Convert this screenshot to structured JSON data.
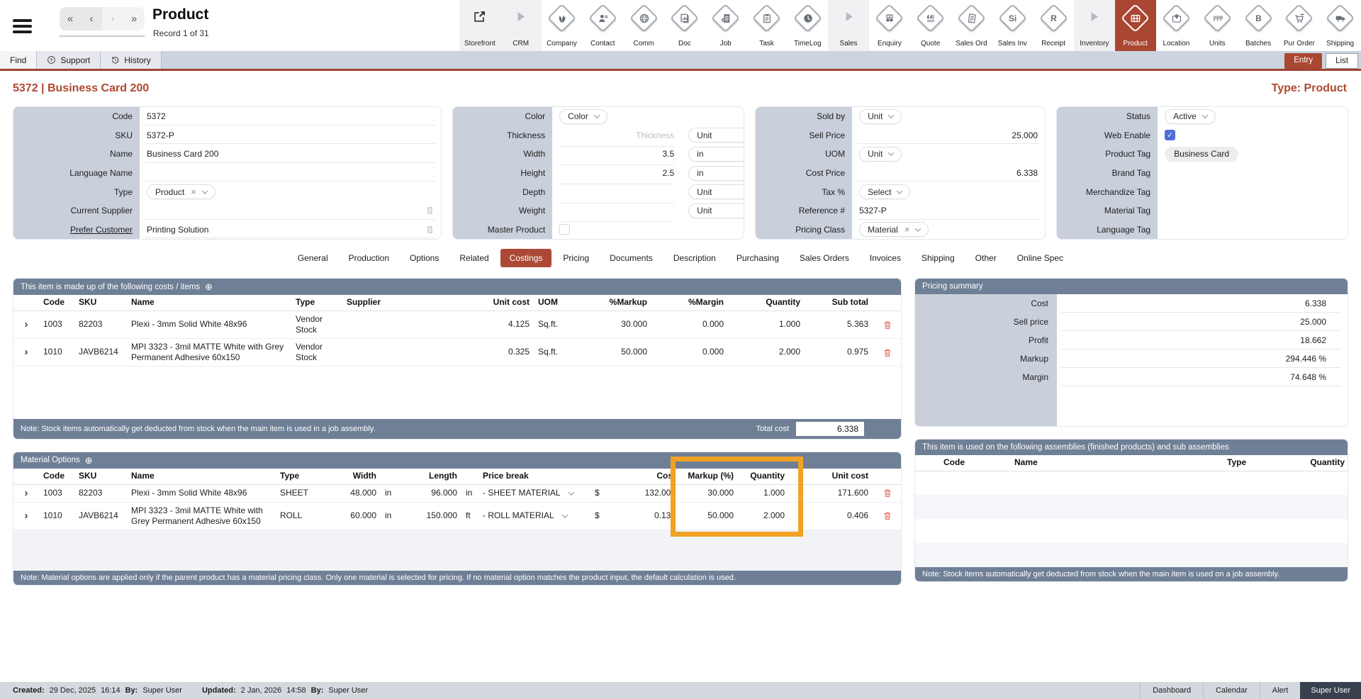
{
  "app": {
    "title": "Product",
    "record": "Record 1 of 31"
  },
  "topnav": {
    "buttons": [
      "«",
      "‹",
      "›",
      "»"
    ]
  },
  "toolbar": {
    "items": [
      {
        "label": "Storefront",
        "icon": "ext-link",
        "kind": "plain-dark"
      },
      {
        "label": "CRM",
        "icon": "play",
        "kind": "plain"
      },
      {
        "label": "Company",
        "icon": "leaves",
        "kind": "diamond"
      },
      {
        "label": "Contact",
        "icon": "person",
        "kind": "diamond"
      },
      {
        "label": "Comm",
        "icon": "globe",
        "kind": "diamond"
      },
      {
        "label": "Doc",
        "icon": "doc-chart",
        "kind": "diamond"
      },
      {
        "label": "Job",
        "icon": "doc-check",
        "kind": "diamond"
      },
      {
        "label": "Task",
        "icon": "clipboard",
        "kind": "diamond"
      },
      {
        "label": "TimeLog",
        "icon": "clock",
        "kind": "diamond"
      },
      {
        "label": "Sales",
        "icon": "play",
        "kind": "plain"
      },
      {
        "label": "Enquiry",
        "icon": "binoculars",
        "kind": "diamond"
      },
      {
        "label": "Quote",
        "icon": "quote",
        "kind": "diamond"
      },
      {
        "label": "Sales Ord",
        "icon": "doc-lines",
        "kind": "diamond"
      },
      {
        "label": "Sales Inv",
        "icon": "text:Si",
        "kind": "diamond"
      },
      {
        "label": "Receipt",
        "icon": "text:R",
        "kind": "diamond"
      },
      {
        "label": "Inventory",
        "icon": "play",
        "kind": "plain"
      },
      {
        "label": "Product",
        "icon": "shelf",
        "kind": "diamond",
        "active": true
      },
      {
        "label": "Location",
        "icon": "map-pin",
        "kind": "diamond"
      },
      {
        "label": "Units",
        "icon": "barcode",
        "kind": "diamond"
      },
      {
        "label": "Batches",
        "icon": "text:B",
        "kind": "diamond"
      },
      {
        "label": "Pur Order",
        "icon": "cart",
        "kind": "diamond"
      },
      {
        "label": "Shipping",
        "icon": "truck",
        "kind": "diamond"
      }
    ]
  },
  "menubar": {
    "tabs": [
      {
        "label": "Find",
        "icon": null
      },
      {
        "label": "Support",
        "icon": "question"
      },
      {
        "label": "History",
        "icon": "history"
      }
    ],
    "view_buttons": [
      {
        "label": "Entry",
        "active": true
      },
      {
        "label": "List",
        "active": false
      }
    ]
  },
  "heading": {
    "title": "5372 | Business Card 200",
    "type": "Type: Product"
  },
  "form": {
    "panels": [
      {
        "fields": [
          {
            "label": "Code",
            "type": "input",
            "value": "5372"
          },
          {
            "label": "SKU",
            "type": "input",
            "value": "5372-P"
          },
          {
            "label": "Name",
            "type": "input",
            "value": "Business Card 200"
          },
          {
            "label": "Language Name",
            "type": "input",
            "value": ""
          },
          {
            "label": "Type",
            "type": "select-x",
            "value": "Product"
          },
          {
            "label": "Current Supplier",
            "type": "lookup",
            "value": ""
          },
          {
            "label": "Prefer Customer",
            "type": "lookup",
            "value": "Printing Solution",
            "link": true
          }
        ]
      },
      {
        "fields": [
          {
            "label": "Color",
            "type": "select",
            "value": "Color"
          },
          {
            "label": "Thickness",
            "type": "input-unit",
            "value": "",
            "placeholder": "Thickness",
            "unit": "Unit"
          },
          {
            "label": "Width",
            "type": "input-unit",
            "value": "3.5",
            "unit": "in"
          },
          {
            "label": "Height",
            "type": "input-unit",
            "value": "2.5",
            "unit": "in"
          },
          {
            "label": "Depth",
            "type": "input-unit",
            "value": "",
            "unit": "Unit"
          },
          {
            "label": "Weight",
            "type": "input-unit",
            "value": "",
            "unit": "Unit"
          },
          {
            "label": "Master Product",
            "type": "checkbox",
            "checked": false
          }
        ]
      },
      {
        "fields": [
          {
            "label": "Sold by",
            "type": "select",
            "value": "Unit"
          },
          {
            "label": "Sell Price",
            "type": "input-num",
            "value": "25.000"
          },
          {
            "label": "UOM",
            "type": "select",
            "value": "Unit"
          },
          {
            "label": "Cost Price",
            "type": "input-num",
            "value": "6.338"
          },
          {
            "label": "Tax %",
            "type": "select",
            "value": "Select"
          },
          {
            "label": "Reference #",
            "type": "input",
            "value": "5327-P"
          },
          {
            "label": "Pricing Class",
            "type": "select-x",
            "value": "Material"
          }
        ]
      },
      {
        "fields": [
          {
            "label": "Status",
            "type": "select",
            "value": "Active"
          },
          {
            "label": "Web Enable",
            "type": "checkbox",
            "checked": true
          },
          {
            "label": "Product Tag",
            "type": "chip",
            "value": "Business Card"
          },
          {
            "label": "Brand Tag",
            "type": "empty"
          },
          {
            "label": "Merchandize Tag",
            "type": "empty"
          },
          {
            "label": "Material Tag",
            "type": "empty"
          },
          {
            "label": "Language Tag",
            "type": "empty"
          }
        ]
      }
    ]
  },
  "tabs": {
    "items": [
      "General",
      "Production",
      "Options",
      "Related",
      "Costings",
      "Pricing",
      "Documents",
      "Description",
      "Purchasing",
      "Sales Orders",
      "Invoices",
      "Shipping",
      "Other",
      "Online Spec"
    ],
    "active": "Costings"
  },
  "costs_table": {
    "title": "This item is made up of the following costs / items",
    "add_icon": "⊕",
    "columns": [
      "Code",
      "SKU",
      "Name",
      "Type",
      "Supplier",
      "Unit cost",
      "UOM",
      "%Markup",
      "%Margin",
      "Quantity",
      "Sub total"
    ],
    "rows": [
      {
        "code": "1003",
        "sku": "82203",
        "name": "Plexi - 3mm Solid White 48x96",
        "type": "Vendor Stock",
        "supplier": "",
        "unit_cost": "4.125",
        "uom": "Sq.ft.",
        "markup": "30.000",
        "margin": "0.000",
        "quantity": "1.000",
        "sub_total": "5.363"
      },
      {
        "code": "1010",
        "sku": "JAVB6214",
        "name": "MPI 3323 - 3mil MATTE White with Grey Permanent Adhesive 60x150",
        "type": "Vendor Stock",
        "supplier": "",
        "unit_cost": "0.325",
        "uom": "Sq.ft.",
        "markup": "50.000",
        "margin": "0.000",
        "quantity": "2.000",
        "sub_total": "0.975"
      }
    ],
    "note": "Note: Stock items automatically get deducted from stock when the main item is used in a job assembly.",
    "total_label": "Total cost",
    "total": "6.338"
  },
  "pricing_summary": {
    "title": "Pricing summary",
    "rows": [
      {
        "label": "Cost",
        "value": "6.338"
      },
      {
        "label": "Sell price",
        "value": "25.000"
      },
      {
        "label": "Profit",
        "value": "18.662"
      },
      {
        "label": "Markup",
        "value": "294.446 %"
      },
      {
        "label": "Margin",
        "value": "74.648 %"
      }
    ]
  },
  "material_options": {
    "title": "Material Options",
    "add_icon": "⊕",
    "columns": [
      "Code",
      "SKU",
      "Name",
      "Type",
      "Width",
      "Length",
      "Price break",
      "Cost",
      "Markup (%)",
      "Quantity",
      "Unit cost"
    ],
    "rows": [
      {
        "code": "1003",
        "sku": "82203",
        "name": "Plexi - 3mm Solid White 48x96",
        "type": "SHEET",
        "width": "48.000",
        "width_unit": "in",
        "length": "96.000",
        "length_unit": "in",
        "price_break": "- SHEET MATERIAL",
        "currency": "$",
        "cost": "132.000",
        "markup_pct": "30.000",
        "quantity": "1.000",
        "unit_cost": "171.600"
      },
      {
        "code": "1010",
        "sku": "JAVB6214",
        "name": "MPI 3323 - 3mil MATTE White with Grey Permanent Adhesive 60x150",
        "type": "ROLL",
        "width": "60.000",
        "width_unit": "in",
        "length": "150.000",
        "length_unit": "ft",
        "price_break": "- ROLL MATERIAL",
        "currency": "$",
        "cost": "0.135",
        "markup_pct": "50.000",
        "quantity": "2.000",
        "unit_cost": "0.406"
      }
    ],
    "note": "Note: Material options are applied only if the parent product has a material pricing class. Only one material is selected for pricing. If no material option matches the product input, the default calculation is used.",
    "highlight": {
      "columns": [
        "Markup (%)",
        "Quantity"
      ],
      "color": "#F0A224"
    }
  },
  "assemblies": {
    "title": "This item is used on the following assemblies (finished products) and sub assemblies",
    "columns": [
      "Code",
      "Name",
      "Type",
      "Quantity"
    ],
    "rows": [],
    "note": "Note: Stock items automatically get deducted from stock when the main item is used on a job assembly."
  },
  "footer": {
    "created": {
      "label": "Created:",
      "date": "29 Dec, 2025",
      "time": "16:14",
      "by_label": "By:",
      "by": "Super User"
    },
    "updated": {
      "label": "Updated:",
      "date": "2 Jan, 2026",
      "time": "14:58",
      "by_label": "By:",
      "by": "Super User"
    },
    "links": [
      "Dashboard",
      "Calendar",
      "Alert"
    ],
    "user": "Super User"
  },
  "colors": {
    "accent": "#A94732",
    "header_bar": "#6F7F96",
    "highlight": "#F0A224",
    "label_bg": "#C9D0DB",
    "check_blue": "#4F6FD8",
    "delete_red": "#E8695A"
  }
}
